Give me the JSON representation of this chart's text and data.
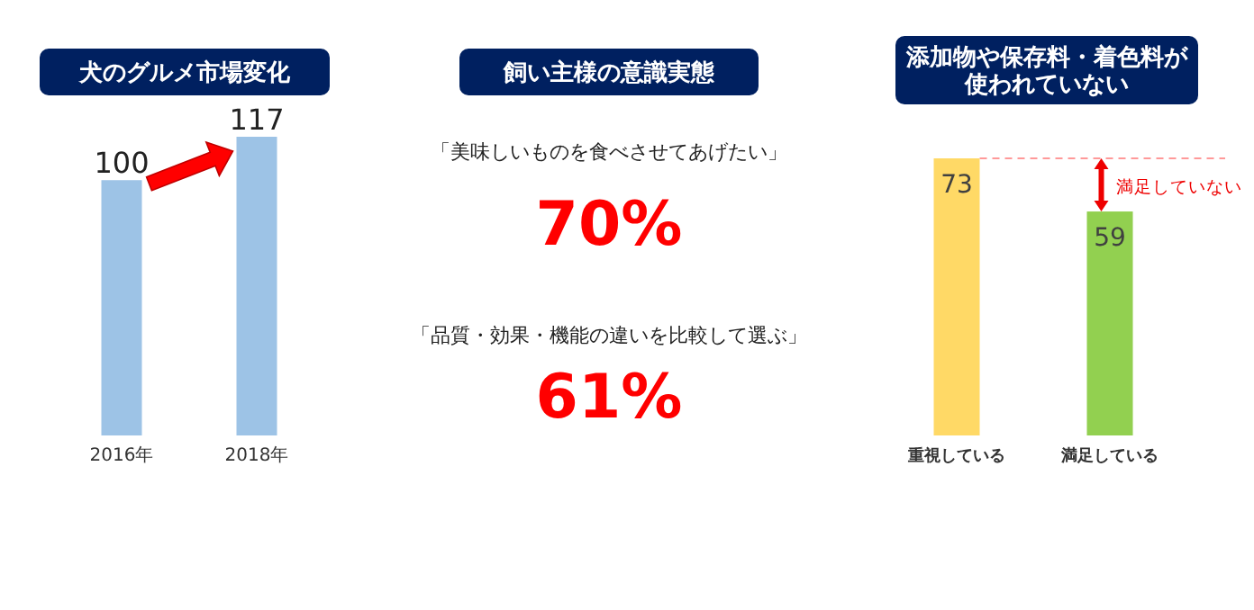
{
  "chart_data": [
    {
      "type": "bar",
      "title": "犬のグルメ市場変化",
      "categories": [
        "2016年",
        "2018年"
      ],
      "values": [
        100,
        117
      ],
      "colors": [
        "#9dc3e6",
        "#9dc3e6"
      ],
      "data_labels": true,
      "tick_labels": "x"
    },
    {
      "type": "other",
      "title": "飼い主様の意識実態",
      "annotations": [
        "「美味しいものを食べさせてあげたい」",
        "70%",
        "「品質・効果・機能の違いを比較して選ぶ」",
        "61%"
      ]
    },
    {
      "type": "bar",
      "title": "添加物や保存料・着色料が使われていない",
      "categories": [
        "重視している",
        "満足している"
      ],
      "values": [
        73,
        59
      ],
      "colors": [
        "#ffd966",
        "#92d050"
      ],
      "data_labels": true,
      "tick_labels": "x",
      "ref_lines": [
        {
          "axis": "y",
          "value": 73,
          "color": "#ff9999",
          "line_style": "dashed",
          "label": "満足していない"
        }
      ]
    }
  ]
}
